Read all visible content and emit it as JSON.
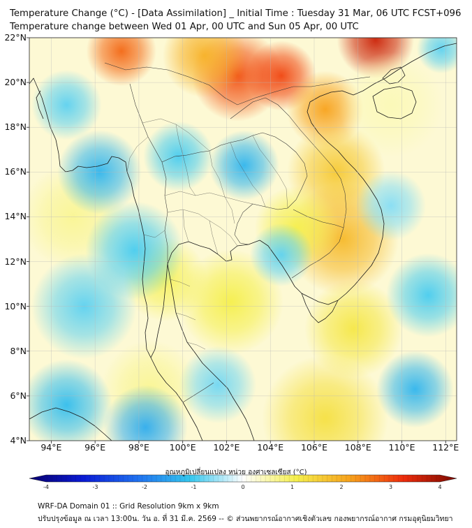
{
  "header": {
    "title_line1": "Temperature Change (°C) - [Data Assimilation] _ Initial Time : Tuesday 31 Mar, 06 UTC FCST+096",
    "title_line2": "Temperature change between Wed 01 Apr, 00 UTC and Sun 05 Apr, 00 UTC"
  },
  "map": {
    "lat_labels": [
      "22°N",
      "20°N",
      "18°N",
      "16°N",
      "14°N",
      "12°N",
      "10°N",
      "8°N",
      "6°N",
      "4°N"
    ],
    "lon_labels": [
      "94°E",
      "96°E",
      "98°E",
      "100°E",
      "102°E",
      "104°E",
      "106°E",
      "108°E",
      "110°E",
      "112°E"
    ],
    "lat_range": [
      4,
      22
    ],
    "lon_range": [
      93,
      112.5
    ],
    "grid": true,
    "field_hotspots": [
      {
        "lon": 102.5,
        "lat": 20.3,
        "value": 2.7,
        "spread": 1.3
      },
      {
        "lon": 104.5,
        "lat": 20.3,
        "value": 2.8,
        "spread": 1.0
      },
      {
        "lon": 97.2,
        "lat": 21.4,
        "value": 2.5,
        "spread": 1.0
      },
      {
        "lon": 108.8,
        "lat": 21.9,
        "value": 3.3,
        "spread": 1.1
      },
      {
        "lon": 106.5,
        "lat": 18.8,
        "value": 2.0,
        "spread": 1.1
      },
      {
        "lon": 101.0,
        "lat": 21.2,
        "value": 1.8,
        "spread": 1.2
      },
      {
        "lon": 107.0,
        "lat": 16.0,
        "value": 1.5,
        "spread": 1.4
      },
      {
        "lon": 107.3,
        "lat": 13.0,
        "value": 1.7,
        "spread": 1.6
      },
      {
        "lon": 105.2,
        "lat": 13.5,
        "value": 1.0,
        "spread": 1.2
      },
      {
        "lon": 102.2,
        "lat": 10.2,
        "value": 1.0,
        "spread": 1.5
      },
      {
        "lon": 99.2,
        "lat": 11.2,
        "value": 0.9,
        "spread": 1.2
      },
      {
        "lon": 107.8,
        "lat": 9.0,
        "value": 1.1,
        "spread": 1.4
      },
      {
        "lon": 106.5,
        "lat": 5.0,
        "value": 1.2,
        "spread": 1.8
      },
      {
        "lon": 98.5,
        "lat": 6.3,
        "value": 0.6,
        "spread": 1.4
      },
      {
        "lon": 95.0,
        "lat": 14.0,
        "value": 0.6,
        "spread": 1.5
      },
      {
        "lon": 102.8,
        "lat": 16.3,
        "value": -1.2,
        "spread": 1.0
      },
      {
        "lon": 99.8,
        "lat": 16.7,
        "value": -0.9,
        "spread": 1.0
      },
      {
        "lon": 96.2,
        "lat": 16.0,
        "value": -1.2,
        "spread": 1.2
      },
      {
        "lon": 94.7,
        "lat": 19.0,
        "value": -0.8,
        "spread": 1.0
      },
      {
        "lon": 97.8,
        "lat": 12.5,
        "value": -0.9,
        "spread": 1.4
      },
      {
        "lon": 95.5,
        "lat": 10.0,
        "value": -0.8,
        "spread": 1.5
      },
      {
        "lon": 94.7,
        "lat": 5.6,
        "value": -1.1,
        "spread": 1.3
      },
      {
        "lon": 98.3,
        "lat": 4.6,
        "value": -1.3,
        "spread": 1.2
      },
      {
        "lon": 101.6,
        "lat": 6.5,
        "value": -0.7,
        "spread": 1.1
      },
      {
        "lon": 104.5,
        "lat": 12.3,
        "value": -0.8,
        "spread": 0.9
      },
      {
        "lon": 110.6,
        "lat": 6.3,
        "value": -1.2,
        "spread": 1.1
      },
      {
        "lon": 111.2,
        "lat": 10.5,
        "value": -0.9,
        "spread": 1.2
      },
      {
        "lon": 109.5,
        "lat": 14.5,
        "value": -0.6,
        "spread": 1.0
      },
      {
        "lon": 111.8,
        "lat": 21.5,
        "value": -0.8,
        "spread": 0.7
      },
      {
        "lon": 109.5,
        "lat": 19.0,
        "value": 0.4,
        "spread": 1.5
      }
    ]
  },
  "colorbar": {
    "title": "อุณหภูมิเปลี่ยนแปลง หน่วย องศาเซลเซียส (°C)",
    "ticks": [
      "-4",
      "-3",
      "-2",
      "-1",
      "0",
      "1",
      "2",
      "3",
      "4"
    ],
    "range": [
      -4,
      4
    ],
    "colors": [
      "#08006e",
      "#0a1ad4",
      "#1f6ff0",
      "#34c6ee",
      "#ffffff",
      "#f5ef4c",
      "#f7a21c",
      "#ee2c0c",
      "#7a0a00"
    ]
  },
  "footer": {
    "line1": "WRF-DA Domain 01 :: Grid Resolution 9km x 9km",
    "line2": "ปรับปรุงข้อมูล ณ เวลา 13:00น. วัน อ. ที่ 31 มี.ค. 2569 -- © ส่วนพยากรณ์อากาศเชิงตัวเลข กองพยากรณ์อากาศ กรมอุตุนิยมวิทยา"
  }
}
